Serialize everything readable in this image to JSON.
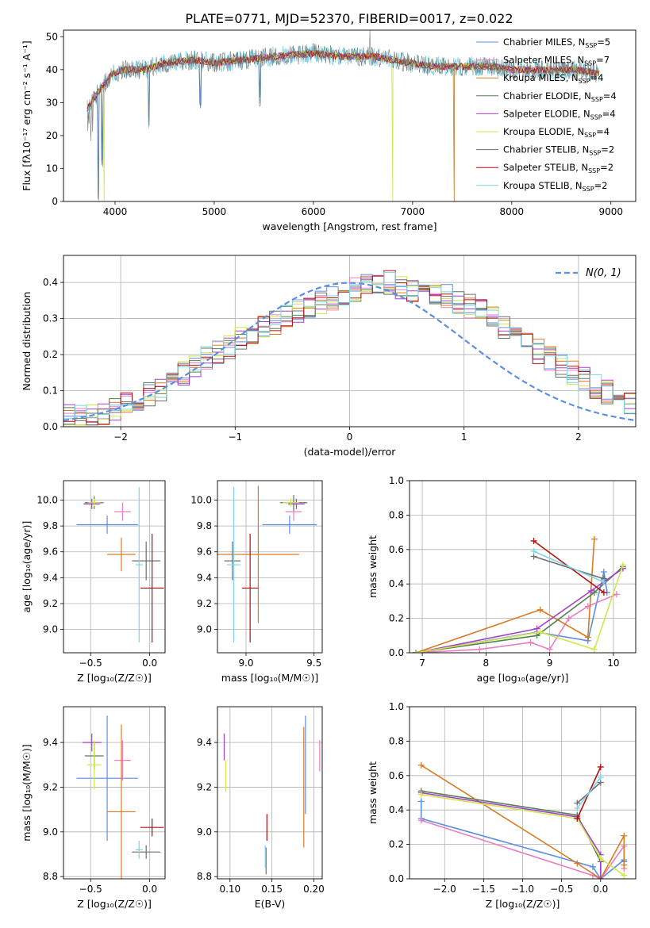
{
  "figure": {
    "title": "PLATE=0771, MJD=52370, FIBERID=0017, z=0.022"
  },
  "colors": {
    "series": [
      "#5b8fe0",
      "#e87ec0",
      "#d97a24",
      "#557f55",
      "#a640c9",
      "#d0e64c",
      "#6e6e6e",
      "#b31010",
      "#7fd4e6"
    ],
    "normal": "#5b8fe0",
    "grid": "#b0b0b0"
  },
  "chart_data": [
    {
      "id": "spectrum",
      "type": "line",
      "xlabel": "wavelength [Angstrom, rest frame]",
      "ylabel": "Flux [fλ10⁻¹⁷ erg cm⁻² s⁻¹ A⁻¹]",
      "xlim": [
        3480,
        9250
      ],
      "ylim": [
        0,
        52
      ],
      "xticks": [
        4000,
        5000,
        6000,
        7000,
        8000,
        9000
      ],
      "yticks": [
        0,
        10,
        20,
        30,
        40,
        50
      ],
      "grid": false,
      "legend_position": "top-right",
      "continuum": [
        [
          3720,
          28
        ],
        [
          3800,
          32
        ],
        [
          3900,
          36
        ],
        [
          3980,
          39
        ],
        [
          4100,
          40
        ],
        [
          4300,
          40
        ],
        [
          4500,
          42
        ],
        [
          4800,
          43
        ],
        [
          5000,
          42
        ],
        [
          5300,
          43
        ],
        [
          5600,
          44
        ],
        [
          6000,
          45
        ],
        [
          6300,
          44
        ],
        [
          6600,
          44
        ],
        [
          6800,
          43
        ],
        [
          7000,
          42
        ],
        [
          7200,
          41
        ],
        [
          7500,
          41
        ],
        [
          7800,
          41
        ],
        [
          8000,
          40
        ],
        [
          8300,
          40
        ],
        [
          8600,
          40
        ],
        [
          8880,
          39
        ]
      ],
      "noisy_series": 6,
      "absorption_features": [
        [
          3830,
          0
        ],
        [
          3870,
          10
        ],
        [
          4340,
          22
        ],
        [
          4860,
          28
        ],
        [
          5460,
          28
        ]
      ],
      "dropouts": [
        [
          3890,
          0
        ],
        [
          6800,
          0
        ],
        [
          7420,
          0
        ]
      ],
      "spike": [
        6570,
        52
      ],
      "legend": [
        {
          "label": "Chabrier MILES, N",
          "sub": "SSP",
          "suffix": "=5"
        },
        {
          "label": "Salpeter MILES, N",
          "sub": "SSP",
          "suffix": "=7"
        },
        {
          "label": "Kroupa MILES, N",
          "sub": "SSP",
          "suffix": "=4"
        },
        {
          "label": "Chabrier ELODIE, N",
          "sub": "SSP",
          "suffix": "=4"
        },
        {
          "label": "Salpeter ELODIE, N",
          "sub": "SSP",
          "suffix": "=4"
        },
        {
          "label": "Kroupa ELODIE, N",
          "sub": "SSP",
          "suffix": "=4"
        },
        {
          "label": "Chabrier STELIB, N",
          "sub": "SSP",
          "suffix": "=2"
        },
        {
          "label": "Salpeter STELIB, N",
          "sub": "SSP",
          "suffix": "=2"
        },
        {
          "label": "Kroupa STELIB, N",
          "sub": "SSP",
          "suffix": "=2"
        }
      ]
    },
    {
      "id": "residuals",
      "type": "histogram",
      "xlabel": "(data-model)/error",
      "ylabel": "Normed distribution",
      "xlim": [
        -2.5,
        2.5
      ],
      "ylim": [
        0,
        0.475
      ],
      "xticks": [
        -2,
        -1,
        0,
        1,
        2
      ],
      "yticks": [
        0.0,
        0.1,
        0.2,
        0.3,
        0.4
      ],
      "grid": true,
      "legend_position": "top-right",
      "legend_label": "N(0, 1)",
      "bin_width": 0.1,
      "bin_start": -2.5,
      "baseline": [
        0.03,
        0.025,
        0.03,
        0.04,
        0.05,
        0.06,
        0.075,
        0.09,
        0.105,
        0.13,
        0.15,
        0.17,
        0.19,
        0.205,
        0.22,
        0.245,
        0.26,
        0.275,
        0.29,
        0.305,
        0.32,
        0.335,
        0.345,
        0.355,
        0.37,
        0.38,
        0.39,
        0.395,
        0.4,
        0.385,
        0.38,
        0.39,
        0.37,
        0.36,
        0.345,
        0.335,
        0.32,
        0.3,
        0.28,
        0.255,
        0.235,
        0.21,
        0.19,
        0.17,
        0.15,
        0.13,
        0.11,
        0.095,
        0.08,
        0.07,
        0.06
      ]
    },
    {
      "id": "age-vs-Z",
      "type": "errorbar",
      "xlabel": "Z [log₁₀(Z/Z☉)]",
      "ylabel": "age  [log₁₀(age/yr)]",
      "xlim": [
        -0.73,
        0.13
      ],
      "ylim": [
        8.82,
        10.15
      ],
      "xticks": [
        -0.5,
        0.0
      ],
      "yticks": [
        9.0,
        9.2,
        9.4,
        9.6,
        9.8,
        10.0
      ],
      "grid": true,
      "points": [
        {
          "s": 0,
          "x": -0.36,
          "y": 9.81,
          "xerr": 0.26,
          "yerr": 0.07
        },
        {
          "s": 1,
          "x": -0.23,
          "y": 9.91,
          "xerr": 0.07,
          "yerr": 0.07
        },
        {
          "s": 2,
          "x": -0.24,
          "y": 9.58,
          "xerr": 0.12,
          "yerr": 0.13
        },
        {
          "s": 3,
          "x": -0.47,
          "y": 9.98,
          "xerr": 0.08,
          "yerr": 0.05
        },
        {
          "s": 4,
          "x": -0.49,
          "y": 9.97,
          "xerr": 0.07,
          "yerr": 0.04
        },
        {
          "s": 5,
          "x": -0.47,
          "y": 9.98,
          "xerr": 0.05,
          "yerr": 0.03
        },
        {
          "s": 6,
          "x": -0.03,
          "y": 9.53,
          "xerr": 0.12,
          "yerr": 0.15
        },
        {
          "s": 7,
          "x": 0.02,
          "y": 9.32,
          "xerr": 0.1,
          "yerr": 0.42
        },
        {
          "s": 8,
          "x": -0.09,
          "y": 9.5,
          "xerr": 0.03,
          "yerr": 0.6
        }
      ]
    },
    {
      "id": "age-vs-mass",
      "type": "errorbar",
      "xlabel": "mass [log₁₀(M/M☉)]",
      "ylabel": "",
      "xlim": [
        8.79,
        9.56
      ],
      "ylim": [
        8.82,
        10.15
      ],
      "xticks": [
        9.0,
        9.5
      ],
      "yticks": [
        9.0,
        9.2,
        9.4,
        9.6,
        9.8,
        10.0
      ],
      "grid": true,
      "points": [
        {
          "s": 0,
          "x": 9.32,
          "y": 9.81,
          "xerr": 0.2,
          "yerr": 0.07
        },
        {
          "s": 1,
          "x": 9.35,
          "y": 9.91,
          "xerr": 0.06,
          "yerr": 0.07
        },
        {
          "s": 2,
          "x": 9.09,
          "y": 9.58,
          "xerr": 0.3,
          "yerr": 0.53
        },
        {
          "s": 3,
          "x": 9.35,
          "y": 9.98,
          "xerr": 0.1,
          "yerr": 0.06
        },
        {
          "s": 4,
          "x": 9.37,
          "y": 9.97,
          "xerr": 0.06,
          "yerr": 0.04
        },
        {
          "s": 5,
          "x": 9.33,
          "y": 9.98,
          "xerr": 0.06,
          "yerr": 0.03
        },
        {
          "s": 6,
          "x": 8.9,
          "y": 9.53,
          "xerr": 0.06,
          "yerr": 0.15
        },
        {
          "s": 7,
          "x": 9.03,
          "y": 9.32,
          "xerr": 0.06,
          "yerr": 0.42
        },
        {
          "s": 8,
          "x": 8.91,
          "y": 9.5,
          "xerr": 0.05,
          "yerr": 0.6
        }
      ]
    },
    {
      "id": "weight-vs-age",
      "type": "line",
      "xlabel": "age  [log₁₀(age/yr)]",
      "ylabel": "mass weight",
      "xlim": [
        6.8,
        10.35
      ],
      "ylim": [
        0.0,
        1.0
      ],
      "xticks": [
        7,
        8,
        9,
        10
      ],
      "yticks": [
        0.0,
        0.2,
        0.4,
        0.6,
        0.8,
        1.0
      ],
      "grid": true,
      "series": [
        {
          "s": 0,
          "x": [
            6.9,
            8.8,
            9.6,
            9.85,
            9.9
          ],
          "y": [
            0.0,
            0.12,
            0.07,
            0.47,
            0.35
          ]
        },
        {
          "s": 1,
          "x": [
            6.9,
            7.9,
            8.7,
            9.0,
            9.3,
            9.6,
            10.05
          ],
          "y": [
            0.0,
            0.02,
            0.06,
            0.02,
            0.2,
            0.27,
            0.34
          ]
        },
        {
          "s": 2,
          "x": [
            6.9,
            8.85,
            9.6,
            9.7
          ],
          "y": [
            0.0,
            0.25,
            0.09,
            0.66
          ]
        },
        {
          "s": 3,
          "x": [
            6.9,
            8.8,
            9.7,
            10.15
          ],
          "y": [
            0.0,
            0.1,
            0.35,
            0.5
          ]
        },
        {
          "s": 4,
          "x": [
            6.9,
            8.8,
            9.65,
            10.15
          ],
          "y": [
            0.0,
            0.14,
            0.36,
            0.49
          ]
        },
        {
          "s": 5,
          "x": [
            6.9,
            8.85,
            9.7,
            10.15
          ],
          "y": [
            0.0,
            0.12,
            0.02,
            0.51
          ]
        },
        {
          "s": 6,
          "x": [
            8.75,
            9.85
          ],
          "y": [
            0.56,
            0.43
          ]
        },
        {
          "s": 7,
          "x": [
            8.75,
            9.85
          ],
          "y": [
            0.65,
            0.35
          ]
        },
        {
          "s": 8,
          "x": [
            8.75,
            9.85
          ],
          "y": [
            0.59,
            0.41
          ]
        }
      ]
    },
    {
      "id": "mass-vs-Z",
      "type": "errorbar",
      "xlabel": "Z [log₁₀(Z/Z☉)]",
      "ylabel": "mass [log₁₀(M/M☉)]",
      "xlim": [
        -0.73,
        0.13
      ],
      "ylim": [
        8.79,
        9.56
      ],
      "xticks": [
        -0.5,
        0.0
      ],
      "yticks": [
        8.8,
        9.0,
        9.2,
        9.4
      ],
      "grid": true,
      "points": [
        {
          "s": 0,
          "x": -0.36,
          "y": 9.24,
          "xerr": 0.26,
          "yerr": 0.28
        },
        {
          "s": 1,
          "x": -0.23,
          "y": 9.32,
          "xerr": 0.07,
          "yerr": 0.09
        },
        {
          "s": 2,
          "x": -0.24,
          "y": 9.09,
          "xerr": 0.12,
          "yerr": 0.39
        },
        {
          "s": 3,
          "x": -0.47,
          "y": 9.34,
          "xerr": 0.08,
          "yerr": 0.06
        },
        {
          "s": 4,
          "x": -0.49,
          "y": 9.4,
          "xerr": 0.08,
          "yerr": 0.04
        },
        {
          "s": 5,
          "x": -0.47,
          "y": 9.3,
          "xerr": 0.06,
          "yerr": 0.11
        },
        {
          "s": 6,
          "x": -0.03,
          "y": 8.91,
          "xerr": 0.12,
          "yerr": 0.03
        },
        {
          "s": 7,
          "x": 0.02,
          "y": 9.02,
          "xerr": 0.1,
          "yerr": 0.04
        },
        {
          "s": 8,
          "x": -0.09,
          "y": 8.92,
          "xerr": 0.03,
          "yerr": 0.04
        }
      ]
    },
    {
      "id": "mass-vs-ebv",
      "type": "errorbar",
      "xlabel": "E(B-V)",
      "ylabel": "",
      "xlim": [
        0.085,
        0.21
      ],
      "ylim": [
        8.79,
        9.56
      ],
      "xticks": [
        0.1,
        0.15,
        0.2
      ],
      "yticks": [
        8.8,
        9.0,
        9.2,
        9.4
      ],
      "grid": true,
      "points": [
        {
          "s": 0,
          "x": 0.19,
          "y": 9.3,
          "xerr": 0.0,
          "yerr": 0.22
        },
        {
          "s": 1,
          "x": 0.207,
          "y": 9.34,
          "xerr": 0.0,
          "yerr": 0.07
        },
        {
          "s": 2,
          "x": 0.188,
          "y": 9.2,
          "xerr": 0.0,
          "yerr": 0.27
        },
        {
          "s": 4,
          "x": 0.093,
          "y": 9.38,
          "xerr": 0.0,
          "yerr": 0.06
        },
        {
          "s": 5,
          "x": 0.095,
          "y": 9.25,
          "xerr": 0.0,
          "yerr": 0.07
        },
        {
          "s": 6,
          "x": 0.143,
          "y": 8.87,
          "xerr": 0.0,
          "yerr": 0.06
        },
        {
          "s": 7,
          "x": 0.144,
          "y": 9.02,
          "xerr": 0.0,
          "yerr": 0.06
        },
        {
          "s": 8,
          "x": 0.142,
          "y": 8.89,
          "xerr": 0.0,
          "yerr": 0.05
        }
      ]
    },
    {
      "id": "weight-vs-Z",
      "type": "line",
      "xlabel": "Z [log₁₀(Z/Z☉)]",
      "ylabel": "mass weight",
      "xlim": [
        -2.45,
        0.45
      ],
      "ylim": [
        0.0,
        1.0
      ],
      "xticks": [
        -2.0,
        -1.5,
        -1.0,
        -0.5,
        0.0
      ],
      "yticks": [
        0.0,
        0.2,
        0.4,
        0.6,
        0.8,
        1.0
      ],
      "grid": true,
      "series": [
        {
          "s": 0,
          "x": [
            -2.3,
            -2.3,
            -0.1,
            0.0,
            0.3,
            0.3
          ],
          "y": [
            0.45,
            0.35,
            0.07,
            0.0,
            0.11,
            0.1
          ]
        },
        {
          "s": 1,
          "x": [
            -2.3,
            -0.1,
            0.0,
            0.3,
            0.3
          ],
          "y": [
            0.34,
            0.02,
            0.0,
            0.19,
            0.06
          ]
        },
        {
          "s": 2,
          "x": [
            -2.3,
            -0.3,
            0.0,
            0.3,
            0.3
          ],
          "y": [
            0.66,
            0.09,
            0.0,
            0.25,
            0.08
          ]
        },
        {
          "s": 3,
          "x": [
            -2.3,
            -0.3,
            0.0,
            0.0
          ],
          "y": [
            0.51,
            0.37,
            0.1,
            0.0
          ]
        },
        {
          "s": 4,
          "x": [
            -2.3,
            -0.3,
            0.0,
            0.0
          ],
          "y": [
            0.5,
            0.36,
            0.14,
            0.0
          ]
        },
        {
          "s": 5,
          "x": [
            -2.3,
            -0.3,
            0.0,
            0.3
          ],
          "y": [
            0.49,
            0.35,
            0.12,
            0.02
          ]
        },
        {
          "s": 6,
          "x": [
            -0.3,
            0.0
          ],
          "y": [
            0.44,
            0.56
          ]
        },
        {
          "s": 7,
          "x": [
            -0.3,
            0.0
          ],
          "y": [
            0.35,
            0.65
          ]
        },
        {
          "s": 8,
          "x": [
            -0.3,
            0.0
          ],
          "y": [
            0.41,
            0.59
          ]
        }
      ]
    }
  ]
}
